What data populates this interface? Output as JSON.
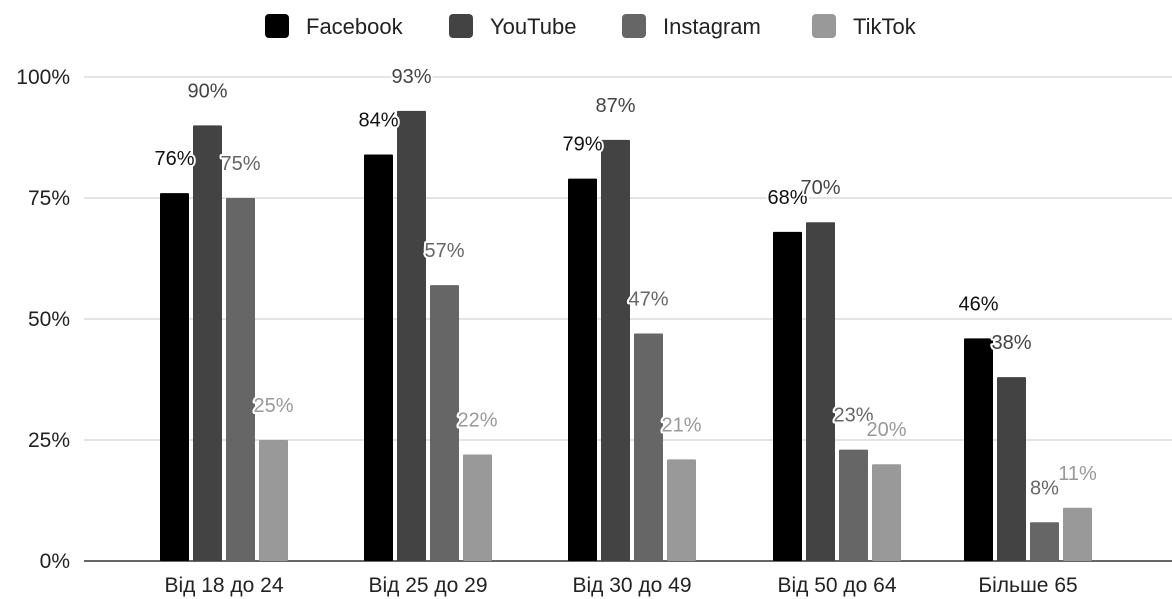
{
  "chart_data": {
    "type": "bar",
    "categories": [
      "Від 18 до 24",
      "Від 25 до 29",
      "Від 30 до 49",
      "Від 50 до 64",
      "Більше 65"
    ],
    "series": [
      {
        "name": "Facebook",
        "color": "#000000",
        "values": [
          76,
          84,
          79,
          68,
          46
        ],
        "labels": [
          "76%",
          "84%",
          "79%",
          "68%",
          "46%"
        ]
      },
      {
        "name": "YouTube",
        "color": "#434343",
        "values": [
          90,
          93,
          87,
          70,
          38
        ],
        "labels": [
          "90%",
          "93%",
          "87%",
          "70%",
          "38%"
        ]
      },
      {
        "name": "Instagram",
        "color": "#666666",
        "values": [
          75,
          57,
          47,
          23,
          8
        ],
        "labels": [
          "75%",
          "57%",
          "47%",
          "23%",
          "8%"
        ]
      },
      {
        "name": "TikTok",
        "color": "#999999",
        "values": [
          25,
          22,
          21,
          20,
          11
        ],
        "labels": [
          "25%",
          "22%",
          "21%",
          "20%",
          "11%"
        ]
      }
    ],
    "yticks": [
      0,
      25,
      50,
      75,
      100
    ],
    "ytick_labels": [
      "0%",
      "25%",
      "50%",
      "75%",
      "100%"
    ],
    "ylim": [
      0,
      100
    ],
    "grid": true,
    "legend_position": "top-center"
  }
}
